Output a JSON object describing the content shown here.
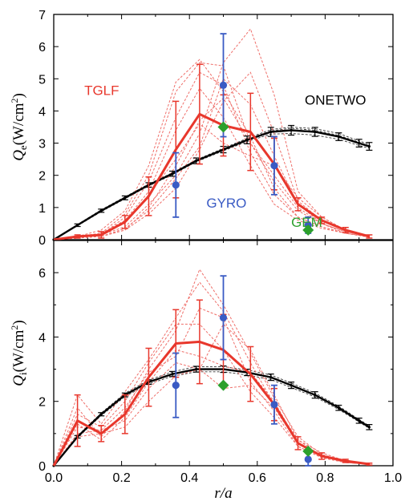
{
  "colors": {
    "tglf": "#e8372c",
    "tglf_ensemble": "#ef6f6a",
    "gyro": "#3a5bc4",
    "gem": "#2ca02c",
    "onetwo": "#000000"
  },
  "chart_data": [
    {
      "type": "line",
      "panel": "top",
      "ylabel": "Qe(W/cm²)",
      "ylabel_parts": {
        "main": "Q",
        "sub": "e",
        "unit_open": "(W/cm",
        "sup": "2",
        "unit_close": ")"
      },
      "xlim": [
        0,
        1.0
      ],
      "ylim": [
        0,
        7
      ],
      "yticks": [
        "0",
        "1",
        "2",
        "3",
        "4",
        "5",
        "6",
        "7"
      ],
      "annotations": [
        {
          "text": "TGLF",
          "color": "tglf",
          "x": 0.09,
          "y": 4.5
        },
        {
          "text": "ONETWO",
          "color": "onetwo",
          "x": 0.74,
          "y": 4.2
        },
        {
          "text": "GYRO",
          "color": "gyro",
          "x": 0.45,
          "y": 1.0
        },
        {
          "text": "GEM",
          "color": "gem",
          "x": 0.7,
          "y": 0.4
        }
      ],
      "series": [
        {
          "name": "ONETWO",
          "color": "onetwo",
          "style": "line",
          "x": [
            0.0,
            0.07,
            0.14,
            0.21,
            0.28,
            0.35,
            0.42,
            0.5,
            0.57,
            0.64,
            0.7,
            0.77,
            0.84,
            0.9,
            0.93
          ],
          "y": [
            0.0,
            0.45,
            0.9,
            1.3,
            1.7,
            2.05,
            2.45,
            2.8,
            3.1,
            3.35,
            3.4,
            3.35,
            3.2,
            3.0,
            2.9
          ],
          "err": [
            0,
            0.04,
            0.05,
            0.06,
            0.07,
            0.08,
            0.09,
            0.1,
            0.12,
            0.14,
            0.15,
            0.14,
            0.12,
            0.12,
            0.12
          ],
          "ensemble": [
            [
              0.0,
              0.43,
              0.87,
              1.27,
              1.67,
              2.02,
              2.42,
              2.76,
              3.05,
              3.28,
              3.3,
              3.25,
              3.12,
              2.93,
              2.84
            ],
            [
              0.0,
              0.47,
              0.93,
              1.33,
              1.73,
              2.08,
              2.48,
              2.84,
              3.15,
              3.42,
              3.5,
              3.45,
              3.3,
              3.07,
              2.96
            ],
            [
              0.0,
              0.44,
              0.89,
              1.29,
              1.69,
              2.04,
              2.45,
              2.81,
              3.12,
              3.38,
              3.46,
              3.4,
              3.24,
              3.03,
              2.92
            ]
          ]
        },
        {
          "name": "TGLF",
          "color": "tglf",
          "style": "line",
          "x": [
            0.0,
            0.07,
            0.14,
            0.21,
            0.28,
            0.36,
            0.43,
            0.5,
            0.58,
            0.65,
            0.72,
            0.79,
            0.86,
            0.93
          ],
          "y": [
            0.0,
            0.1,
            0.15,
            0.55,
            1.35,
            2.8,
            3.9,
            3.55,
            3.35,
            2.35,
            1.1,
            0.6,
            0.3,
            0.1
          ],
          "err": [
            0,
            0.05,
            0.1,
            0.2,
            0.6,
            1.5,
            1.55,
            0.95,
            1.2,
            0.8,
            0.2,
            0.1,
            0.08,
            0.05
          ]
        },
        {
          "name": "TGLF ensemble",
          "color": "tglf_ensemble",
          "style": "dashed",
          "x": [
            0.0,
            0.07,
            0.14,
            0.21,
            0.28,
            0.36,
            0.43,
            0.5,
            0.58,
            0.65,
            0.72,
            0.79,
            0.86,
            0.93
          ],
          "runs": [
            [
              0.0,
              0.05,
              0.2,
              0.8,
              2.0,
              4.6,
              5.5,
              5.4,
              3.0,
              1.8,
              0.9,
              0.5,
              0.25,
              0.1
            ],
            [
              0.0,
              0.1,
              0.3,
              0.9,
              2.3,
              4.9,
              5.6,
              4.6,
              3.2,
              1.6,
              0.7,
              0.4,
              0.2,
              0.08
            ],
            [
              0.0,
              0.1,
              0.15,
              0.4,
              1.1,
              2.0,
              3.3,
              5.5,
              6.55,
              4.5,
              1.5,
              0.7,
              0.3,
              0.1
            ],
            [
              0.0,
              0.08,
              0.1,
              0.3,
              0.8,
              1.6,
              2.8,
              4.3,
              5.2,
              3.3,
              1.2,
              0.6,
              0.3,
              0.1
            ],
            [
              0.0,
              0.1,
              0.2,
              0.6,
              1.5,
              3.4,
              4.7,
              3.8,
              2.3,
              1.1,
              0.6,
              0.35,
              0.2,
              0.08
            ],
            [
              0.0,
              0.05,
              0.1,
              0.3,
              1.0,
              2.3,
              3.7,
              4.4,
              3.0,
              2.0,
              1.0,
              0.5,
              0.2,
              0.1
            ],
            [
              0.0,
              0.1,
              0.2,
              0.5,
              1.4,
              2.5,
              3.6,
              3.0,
              2.6,
              2.3,
              1.3,
              0.7,
              0.3,
              0.1
            ],
            [
              0.0,
              0.1,
              0.1,
              0.35,
              0.9,
              1.9,
              2.9,
              5.0,
              4.2,
              2.6,
              1.1,
              0.5,
              0.25,
              0.1
            ],
            [
              0.0,
              0.05,
              0.15,
              0.7,
              1.8,
              3.8,
              5.2,
              4.8,
              2.7,
              1.4,
              0.7,
              0.4,
              0.2,
              0.1
            ]
          ]
        },
        {
          "name": "GYRO",
          "color": "gyro",
          "style": "points",
          "x": [
            0.36,
            0.5,
            0.65,
            0.75
          ],
          "y": [
            1.7,
            4.8,
            2.3,
            0.45
          ],
          "err": [
            1.0,
            1.6,
            0.9,
            0.25
          ]
        },
        {
          "name": "GEM",
          "color": "gem",
          "style": "diamonds",
          "x": [
            0.5,
            0.75
          ],
          "y": [
            3.5,
            0.3
          ]
        }
      ]
    },
    {
      "type": "line",
      "panel": "bottom",
      "ylabel": "Qi(W/cm²)",
      "ylabel_parts": {
        "main": "Q",
        "sub": "i",
        "unit_open": "(W/cm",
        "sup": "2",
        "unit_close": ")"
      },
      "xlabel": "r/a",
      "xlim": [
        0,
        1.0
      ],
      "ylim": [
        0,
        7
      ],
      "yticks": [
        "0",
        "2",
        "4",
        "6"
      ],
      "yticks_values": [
        0,
        2,
        4,
        6
      ],
      "xticks": [
        "0.0",
        "0.2",
        "0.4",
        "0.6",
        "0.8",
        "1.0"
      ],
      "xticks_values": [
        0.0,
        0.2,
        0.4,
        0.6,
        0.8,
        1.0
      ],
      "series": [
        {
          "name": "ONETWO",
          "color": "onetwo",
          "style": "line",
          "x": [
            0.0,
            0.07,
            0.14,
            0.21,
            0.28,
            0.35,
            0.42,
            0.5,
            0.57,
            0.64,
            0.7,
            0.77,
            0.84,
            0.9,
            0.93
          ],
          "y": [
            0.0,
            0.9,
            1.6,
            2.2,
            2.6,
            2.85,
            3.0,
            3.0,
            2.9,
            2.75,
            2.5,
            2.2,
            1.8,
            1.4,
            1.2
          ],
          "err": [
            0,
            0.04,
            0.05,
            0.06,
            0.07,
            0.08,
            0.09,
            0.1,
            0.1,
            0.1,
            0.1,
            0.1,
            0.08,
            0.08,
            0.08
          ],
          "ensemble": [
            [
              0.0,
              0.87,
              1.56,
              2.15,
              2.54,
              2.78,
              2.92,
              2.92,
              2.82,
              2.68,
              2.43,
              2.14,
              1.75,
              1.36,
              1.16
            ],
            [
              0.0,
              0.93,
              1.64,
              2.25,
              2.66,
              2.92,
              3.08,
              3.08,
              2.98,
              2.82,
              2.57,
              2.26,
              1.85,
              1.44,
              1.24
            ]
          ]
        },
        {
          "name": "TGLF",
          "color": "tglf",
          "style": "line",
          "x": [
            0.0,
            0.07,
            0.14,
            0.21,
            0.28,
            0.36,
            0.43,
            0.5,
            0.58,
            0.65,
            0.72,
            0.79,
            0.86,
            0.93
          ],
          "y": [
            0.0,
            1.4,
            1.0,
            1.6,
            2.75,
            3.8,
            3.85,
            3.6,
            2.85,
            1.9,
            0.7,
            0.3,
            0.15,
            0.05
          ],
          "err": [
            0,
            0.8,
            0.25,
            0.6,
            0.9,
            1.05,
            1.3,
            1.1,
            0.85,
            0.5,
            0.2,
            0.1,
            0.05,
            0.03
          ]
        },
        {
          "name": "TGLF ensemble",
          "color": "tglf_ensemble",
          "style": "dashed",
          "x": [
            0.0,
            0.07,
            0.14,
            0.21,
            0.28,
            0.36,
            0.43,
            0.5,
            0.58,
            0.65,
            0.72,
            0.79,
            0.86,
            0.93
          ],
          "runs": [
            [
              0.0,
              2.2,
              1.3,
              2.3,
              3.3,
              4.6,
              5.7,
              4.8,
              3.2,
              1.9,
              0.8,
              0.4,
              0.15,
              0.05
            ],
            [
              0.0,
              1.8,
              0.9,
              1.7,
              3.0,
              4.2,
              6.1,
              5.0,
              3.5,
              2.1,
              0.9,
              0.35,
              0.15,
              0.05
            ],
            [
              0.0,
              1.2,
              1.1,
              1.4,
              2.4,
              3.2,
              3.0,
              4.4,
              3.6,
              2.2,
              0.8,
              0.3,
              0.1,
              0.05
            ],
            [
              0.0,
              0.9,
              1.0,
              1.2,
              2.0,
              2.8,
              3.0,
              2.4,
              2.5,
              1.8,
              0.7,
              0.3,
              0.1,
              0.05
            ],
            [
              0.0,
              1.6,
              1.2,
              2.0,
              3.2,
              4.4,
              4.4,
              3.6,
              2.3,
              1.5,
              0.6,
              0.25,
              0.1,
              0.05
            ],
            [
              0.0,
              1.3,
              0.8,
              1.5,
              2.6,
              3.6,
              3.4,
              3.1,
              2.9,
              2.0,
              0.7,
              0.3,
              0.1,
              0.05
            ],
            [
              0.0,
              1.0,
              1.1,
              1.8,
              2.9,
              3.4,
              4.9,
              4.6,
              2.6,
              1.7,
              0.6,
              0.25,
              0.1,
              0.05
            ]
          ]
        },
        {
          "name": "GYRO",
          "color": "gyro",
          "style": "points",
          "x": [
            0.36,
            0.5,
            0.65,
            0.75
          ],
          "y": [
            2.5,
            4.6,
            1.9,
            0.2
          ],
          "err": [
            1.0,
            1.3,
            0.6,
            0.2
          ]
        },
        {
          "name": "GEM",
          "color": "gem",
          "style": "diamonds",
          "x": [
            0.5,
            0.75
          ],
          "y": [
            2.5,
            0.45
          ]
        }
      ]
    }
  ]
}
